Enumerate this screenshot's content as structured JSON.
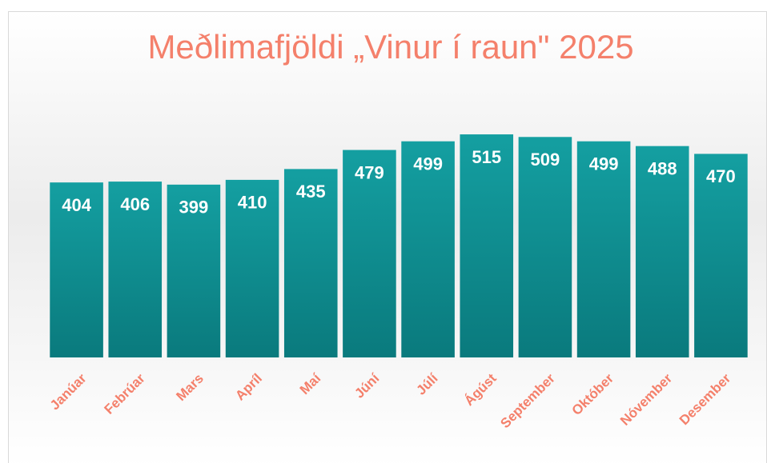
{
  "chart_data": {
    "type": "bar",
    "title": "Meðlimafjöldi „Vinur í raun\" 2025",
    "categories": [
      "Janúar",
      "Febrúar",
      "Mars",
      "Apríl",
      "Maí",
      "Júní",
      "Júlí",
      "Ágúst",
      "September",
      "Október",
      "Nóvember",
      "Desember"
    ],
    "values": [
      404,
      406,
      399,
      410,
      435,
      479,
      499,
      515,
      509,
      499,
      488,
      470
    ],
    "color": "#0f9294",
    "label_color": "#f4806b",
    "ylim": [
      0,
      600
    ]
  }
}
